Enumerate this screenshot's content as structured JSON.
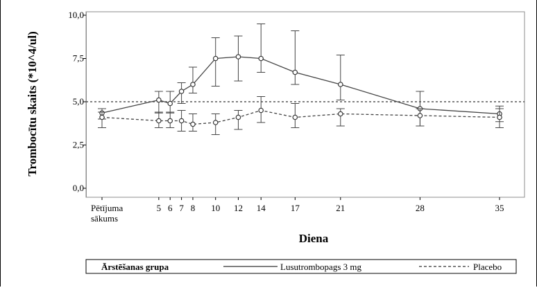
{
  "chart_data": {
    "type": "line",
    "title": "",
    "xlabel": "Diena",
    "ylabel": "Trombocītu skaits (*10^4/ul)",
    "x_positions": [
      0,
      5,
      6,
      7,
      8,
      10,
      12,
      14,
      17,
      21,
      28,
      35
    ],
    "x_tick_labels": [
      "Pētījuma sākums",
      "5",
      "6",
      "7",
      "8",
      "10",
      "12",
      "14",
      "17",
      "21",
      "28",
      "35"
    ],
    "y_ticks": [
      0.0,
      2.5,
      5.0,
      7.5,
      10.0
    ],
    "y_tick_labels": [
      "0,0",
      "2,5",
      "5,0",
      "7,5",
      "10,0"
    ],
    "ylim": [
      0,
      10
    ],
    "reference_line": 5.0,
    "grid": false,
    "legend": {
      "placement": "bottom",
      "title": "Ārstēšanas grupa"
    },
    "series": [
      {
        "name": "Lusutrombopags 3 mg",
        "line_style": "solid",
        "x": [
          0,
          5,
          6,
          7,
          8,
          10,
          12,
          14,
          17,
          21,
          28,
          35
        ],
        "values": [
          4.35,
          5.1,
          4.9,
          5.6,
          6.0,
          7.5,
          7.6,
          7.5,
          6.7,
          6.0,
          4.6,
          4.3
        ],
        "err_low": [
          4.0,
          4.35,
          4.35,
          4.9,
          5.5,
          5.9,
          6.2,
          6.7,
          6.0,
          5.1,
          3.6,
          3.85
        ],
        "err_high": [
          4.6,
          5.6,
          5.6,
          6.1,
          7.0,
          8.7,
          8.8,
          9.5,
          9.1,
          7.7,
          5.6,
          4.75
        ]
      },
      {
        "name": "Placebo",
        "line_style": "dashed",
        "x": [
          0,
          5,
          6,
          7,
          8,
          10,
          12,
          14,
          17,
          21,
          28,
          35
        ],
        "values": [
          4.1,
          3.9,
          3.9,
          3.9,
          3.7,
          3.8,
          4.1,
          4.5,
          4.1,
          4.3,
          4.2,
          4.1
        ],
        "err_low": [
          3.5,
          3.5,
          3.5,
          3.3,
          3.3,
          3.1,
          3.4,
          3.8,
          3.5,
          3.6,
          3.6,
          3.5
        ],
        "err_high": [
          4.4,
          4.4,
          4.4,
          4.5,
          4.3,
          4.3,
          4.5,
          5.3,
          4.9,
          4.6,
          4.6,
          4.6
        ]
      }
    ]
  }
}
